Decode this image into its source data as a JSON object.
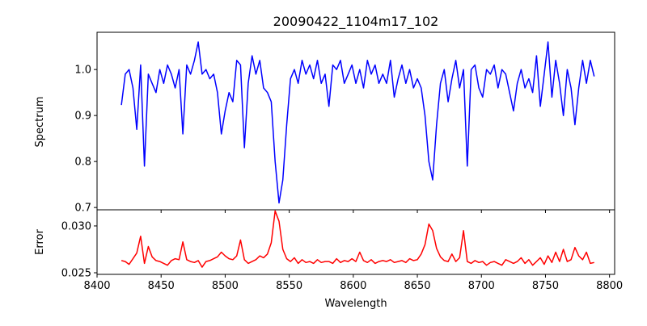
{
  "chart_data": [
    {
      "type": "line",
      "title": "20090422_1104m17_102",
      "xlabel": "",
      "ylabel": "Spectrum",
      "xlim": [
        8400,
        8804
      ],
      "ylim": [
        0.695,
        1.081
      ],
      "xticks": [
        8400,
        8450,
        8500,
        8550,
        8600,
        8650,
        8700,
        8750,
        8800
      ],
      "yticks": [
        0.7,
        0.8,
        0.9,
        1.0
      ],
      "ytick_labels": [
        "0.7",
        "0.8",
        "0.9",
        "1.0"
      ],
      "grid": false,
      "color": "#0000ff",
      "x_start": 8419,
      "x_step": 3,
      "values": [
        0.923,
        0.99,
        1.0,
        0.96,
        0.87,
        1.01,
        0.79,
        0.99,
        0.97,
        0.95,
        1.0,
        0.97,
        1.01,
        0.99,
        0.96,
        1.0,
        0.86,
        1.01,
        0.99,
        1.02,
        1.06,
        0.99,
        1.0,
        0.98,
        0.99,
        0.95,
        0.86,
        0.91,
        0.95,
        0.93,
        1.02,
        1.01,
        0.83,
        0.97,
        1.03,
        0.99,
        1.02,
        0.96,
        0.95,
        0.93,
        0.8,
        0.71,
        0.76,
        0.88,
        0.98,
        1.0,
        0.97,
        1.02,
        0.99,
        1.01,
        0.98,
        1.02,
        0.97,
        0.99,
        0.92,
        1.01,
        1.0,
        1.02,
        0.97,
        0.99,
        1.01,
        0.97,
        1.0,
        0.96,
        1.02,
        0.99,
        1.01,
        0.97,
        0.99,
        0.97,
        1.02,
        0.94,
        0.98,
        1.01,
        0.97,
        1.0,
        0.96,
        0.98,
        0.96,
        0.9,
        0.8,
        0.76,
        0.88,
        0.97,
        1.0,
        0.93,
        0.98,
        1.02,
        0.96,
        1.0,
        0.79,
        1.0,
        1.01,
        0.96,
        0.94,
        1.0,
        0.99,
        1.01,
        0.96,
        1.0,
        0.99,
        0.95,
        0.91,
        0.97,
        1.0,
        0.96,
        0.98,
        0.95,
        1.03,
        0.92,
        0.99,
        1.06,
        0.94,
        1.02,
        0.97,
        0.9,
        1.0,
        0.96,
        0.88,
        0.96,
        1.02,
        0.97,
        1.02,
        0.985
      ]
    },
    {
      "type": "line",
      "title": "",
      "xlabel": "Wavelength",
      "ylabel": "Error",
      "xlim": [
        8400,
        8804
      ],
      "ylim": [
        0.02483,
        0.03172
      ],
      "xticks": [
        8400,
        8450,
        8500,
        8550,
        8600,
        8650,
        8700,
        8750,
        8800
      ],
      "xtick_labels": [
        "8400",
        "8450",
        "8500",
        "8550",
        "8600",
        "8650",
        "8700",
        "8750",
        "8800"
      ],
      "yticks": [
        0.025,
        0.03
      ],
      "ytick_labels": [
        "0.025",
        "0.030"
      ],
      "grid": false,
      "color": "#ff0000",
      "x_start": 8419,
      "x_step": 3,
      "values": [
        0.0263,
        0.0262,
        0.0259,
        0.0265,
        0.0271,
        0.0289,
        0.026,
        0.0278,
        0.0267,
        0.0263,
        0.0262,
        0.026,
        0.0258,
        0.0263,
        0.0265,
        0.0264,
        0.0283,
        0.0264,
        0.0262,
        0.0261,
        0.0263,
        0.0256,
        0.0262,
        0.0263,
        0.0265,
        0.0267,
        0.0272,
        0.0268,
        0.0265,
        0.0264,
        0.0268,
        0.0285,
        0.0264,
        0.026,
        0.0262,
        0.0264,
        0.0268,
        0.0266,
        0.027,
        0.0282,
        0.0316,
        0.0305,
        0.0275,
        0.0265,
        0.0262,
        0.0266,
        0.026,
        0.0264,
        0.0261,
        0.0262,
        0.026,
        0.0264,
        0.0261,
        0.0262,
        0.0262,
        0.026,
        0.0265,
        0.0261,
        0.0263,
        0.0262,
        0.0265,
        0.0262,
        0.0272,
        0.0263,
        0.0261,
        0.0264,
        0.026,
        0.0262,
        0.0263,
        0.0262,
        0.0264,
        0.0261,
        0.0262,
        0.0263,
        0.0261,
        0.0265,
        0.0263,
        0.0264,
        0.027,
        0.028,
        0.0302,
        0.0295,
        0.0276,
        0.0267,
        0.0263,
        0.0262,
        0.027,
        0.0262,
        0.0266,
        0.0295,
        0.0262,
        0.026,
        0.0263,
        0.0261,
        0.0262,
        0.0258,
        0.0261,
        0.0262,
        0.026,
        0.0258,
        0.0264,
        0.0262,
        0.026,
        0.0262,
        0.0266,
        0.026,
        0.0264,
        0.0258,
        0.0262,
        0.0266,
        0.0259,
        0.0268,
        0.0261,
        0.0272,
        0.0262,
        0.0275,
        0.0262,
        0.0264,
        0.0277,
        0.0268,
        0.0264,
        0.0272,
        0.026,
        0.0261
      ]
    }
  ]
}
